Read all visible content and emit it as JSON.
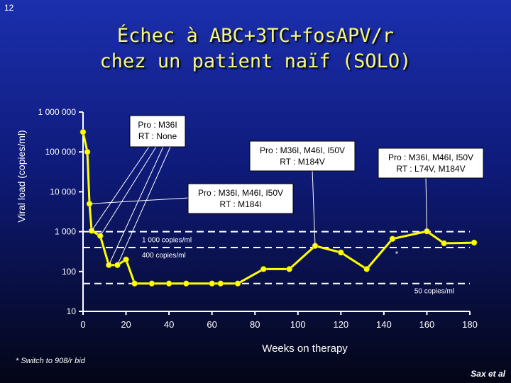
{
  "slide_number": "12",
  "title_line1": "Échec à ABC+3TC+fosAPV/r",
  "title_line2": "chez un patient naïf (SOLO)",
  "footnote": "* Switch to 908/r bid",
  "source": "Sax et al",
  "colors": {
    "axis": "#ffffff",
    "series": "#ffff00",
    "threshold": "#ffffff",
    "callout_box": "#ffffff",
    "callout_text": "#000000"
  },
  "chart_data": {
    "type": "line",
    "xlabel": "Weeks on therapy",
    "ylabel": "Viral load (copies/ml)",
    "x_ticks": [
      0,
      20,
      40,
      60,
      80,
      100,
      120,
      140,
      160,
      180
    ],
    "xlim": [
      0,
      180
    ],
    "y_scale": "log",
    "ylim": [
      10,
      1000000
    ],
    "y_ticks": [
      {
        "value": 1000000,
        "label": "1 000 000"
      },
      {
        "value": 100000,
        "label": "100 000"
      },
      {
        "value": 10000,
        "label": "10 000"
      },
      {
        "value": 1000,
        "label": "1 000"
      },
      {
        "value": 100,
        "label": "100"
      },
      {
        "value": 10,
        "label": "10"
      }
    ],
    "grid": false,
    "series": [
      {
        "points": [
          [
            0,
            316000
          ],
          [
            2,
            100000
          ],
          [
            3,
            5000
          ],
          [
            4,
            1050
          ],
          [
            8,
            780
          ],
          [
            12,
            145
          ],
          [
            16,
            145
          ],
          [
            20,
            200
          ],
          [
            24,
            50
          ],
          [
            32,
            50
          ],
          [
            40,
            50
          ],
          [
            48,
            50
          ],
          [
            60,
            50
          ],
          [
            64,
            50
          ],
          [
            72,
            50
          ],
          [
            84,
            115
          ],
          [
            96,
            115
          ],
          [
            108,
            440
          ],
          [
            120,
            300
          ],
          [
            132,
            115
          ],
          [
            144,
            660
          ],
          [
            160,
            1020
          ],
          [
            168,
            510
          ],
          [
            182,
            530
          ]
        ]
      }
    ],
    "thresholds": [
      {
        "value": 1000,
        "label": "1 000 copies/ml"
      },
      {
        "value": 400,
        "label": "400 copies/ml"
      },
      {
        "value": 50,
        "label": "50 copies/ml"
      }
    ],
    "annotations": [
      {
        "lines": [
          "Pro : M36I",
          "RT : None"
        ],
        "targets": [
          [
            4,
            1050
          ],
          [
            8,
            780
          ],
          [
            12,
            145
          ],
          [
            16,
            145
          ]
        ]
      },
      {
        "lines": [
          "Pro : M36I, M46I, I50V",
          "RT : M184V"
        ],
        "targets": [
          [
            108,
            440
          ]
        ]
      },
      {
        "lines": [
          "Pro : M36I, M46I, I50V",
          "RT : L74V, M184V"
        ],
        "targets": [
          [
            160,
            1020
          ]
        ]
      },
      {
        "lines": [
          "Pro : M36I, M46I, I50V",
          "RT : M184I"
        ],
        "targets": [
          [
            3,
            5000
          ]
        ]
      }
    ],
    "marker_note": {
      "text": "*",
      "x": 146,
      "y": 280
    }
  }
}
